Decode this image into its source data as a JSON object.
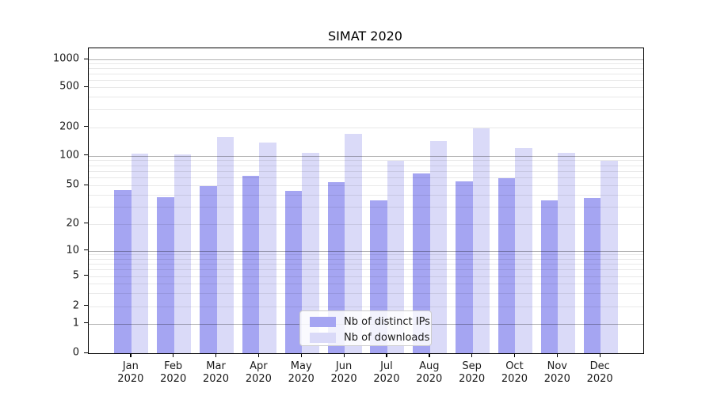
{
  "chart_data": {
    "type": "bar",
    "title": "SIMAT 2020",
    "categories": [
      "Jan",
      "Feb",
      "Mar",
      "Apr",
      "May",
      "Jun",
      "Jul",
      "Aug",
      "Sep",
      "Oct",
      "Nov",
      "Dec"
    ],
    "category_year": "2020",
    "series": [
      {
        "name": "Nb of distinct IPs",
        "color": "#a5a5f2",
        "values": [
          45,
          38,
          49,
          62,
          44,
          54,
          35,
          66,
          55,
          59,
          35,
          37
        ]
      },
      {
        "name": "Nb of downloads",
        "color": "#dadaf8",
        "values": [
          104,
          102,
          158,
          137,
          106,
          170,
          89,
          144,
          195,
          120,
          106,
          89
        ]
      }
    ],
    "yscale": "symlog",
    "ylim": [
      0,
      1000
    ],
    "y_ticks": [
      0,
      1,
      2,
      5,
      10,
      20,
      50,
      100,
      200,
      500,
      1000
    ],
    "y_minor_ticks": [
      2,
      3,
      4,
      5,
      6,
      7,
      8,
      9,
      20,
      30,
      40,
      50,
      60,
      70,
      80,
      90,
      200,
      300,
      400,
      500,
      600,
      700,
      800,
      900
    ],
    "grid": true,
    "grid_above_bars": true,
    "legend": {
      "position": "lower center",
      "entries": [
        "Nb of distinct IPs",
        "Nb of downloads"
      ]
    },
    "colors": {
      "axis": "#000000",
      "major_grid": "#b3b3b3",
      "minor_grid": "#e8e8e8",
      "background": "#ffffff"
    }
  }
}
